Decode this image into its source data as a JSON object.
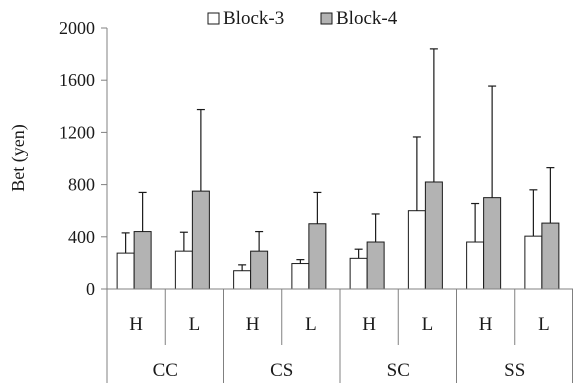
{
  "chart_data": {
    "type": "bar",
    "ylabel": "Bet (yen)",
    "xlabel": "",
    "title": "",
    "ylim": [
      0,
      2000
    ],
    "yticks": [
      0,
      400,
      800,
      1200,
      1600,
      2000
    ],
    "legend_position": "top-center",
    "groups": [
      "CC",
      "CS",
      "SC",
      "SS"
    ],
    "categories": [
      "H",
      "L",
      "H",
      "L",
      "H",
      "L",
      "H",
      "L"
    ],
    "category_group_index": [
      0,
      0,
      1,
      1,
      2,
      2,
      3,
      3
    ],
    "series": [
      {
        "name": "Block-3",
        "color": "#ffffff",
        "values": [
          275,
          290,
          140,
          195,
          235,
          600,
          360,
          405
        ],
        "error_upper": [
          430,
          435,
          185,
          225,
          305,
          1165,
          655,
          760
        ]
      },
      {
        "name": "Block-4",
        "color": "#b3b3b3",
        "values": [
          440,
          750,
          290,
          500,
          360,
          820,
          700,
          505
        ],
        "error_upper": [
          740,
          1375,
          440,
          740,
          575,
          1840,
          1555,
          930
        ]
      }
    ]
  }
}
